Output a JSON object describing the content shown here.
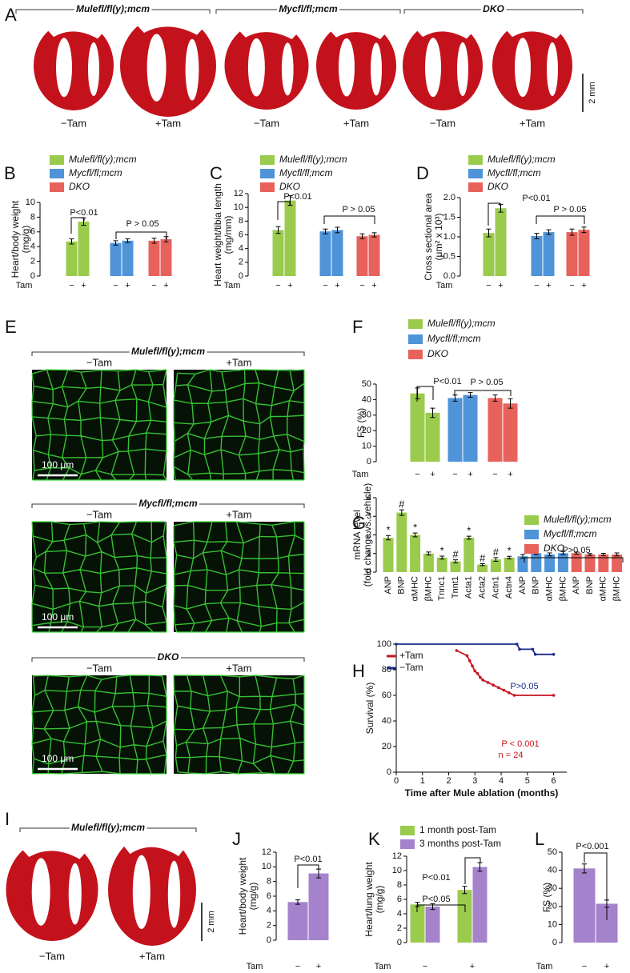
{
  "figure": {
    "A": {
      "panel": "A",
      "groups": [
        "Mulefl/fl(y);mcm",
        "Mycfl/fl;mcm",
        "DKO"
      ],
      "conditions": [
        "−Tam",
        "+Tam"
      ],
      "scale": "2 mm"
    },
    "E": {
      "panel": "E",
      "groups": [
        "Mulefl/fl(y);mcm",
        "Mycfl/fl;mcm",
        "DKO"
      ],
      "conditions": [
        "−Tam",
        "+Tam"
      ],
      "scale": "100 μm"
    },
    "I": {
      "panel": "I",
      "groups": [
        "Mulefl/fl(y);mcm"
      ],
      "conditions": [
        "−Tam",
        "+Tam"
      ],
      "scale": "2 mm"
    }
  },
  "chart_data": [
    {
      "type": "bar",
      "panel": "B",
      "x_label": "Tam",
      "y_label": [
        "Heart/body weight",
        "(mg/g)"
      ],
      "categories": [
        "−",
        "+"
      ],
      "series": [
        {
          "name": "Mulefl/fl(y);mcm",
          "color": "#9bcb4d",
          "values": [
            4.7,
            7.4
          ],
          "errors": [
            0.35,
            0.5
          ]
        },
        {
          "name": "Mycfl/fl;mcm",
          "color": "#4f94d8",
          "values": [
            4.5,
            4.8
          ],
          "errors": [
            0.3,
            0.25
          ]
        },
        {
          "name": "DKO",
          "color": "#e8625c",
          "values": [
            4.8,
            5.0
          ],
          "errors": [
            0.35,
            0.35
          ]
        }
      ],
      "ylim": [
        0,
        10
      ],
      "yticks": [
        0,
        2,
        4,
        6,
        8,
        10
      ],
      "annotations": [
        {
          "text": "P<0.01"
        },
        {
          "text": "P > 0.05"
        }
      ]
    },
    {
      "type": "bar",
      "panel": "C",
      "x_label": "Tam",
      "y_label": [
        "Heart weight/tibia length",
        "(mg/mm)"
      ],
      "categories": [
        "−",
        "+"
      ],
      "series": [
        {
          "name": "Mulefl/fl(y);mcm",
          "color": "#9bcb4d",
          "values": [
            6.7,
            11.0
          ],
          "errors": [
            0.5,
            0.7
          ]
        },
        {
          "name": "Mycfl/fl;mcm",
          "color": "#4f94d8",
          "values": [
            6.5,
            6.7
          ],
          "errors": [
            0.35,
            0.4
          ]
        },
        {
          "name": "DKO",
          "color": "#e8625c",
          "values": [
            5.8,
            6.0
          ],
          "errors": [
            0.35,
            0.3
          ]
        }
      ],
      "ylim": [
        0,
        12
      ],
      "yticks": [
        0,
        2,
        4,
        6,
        8,
        10,
        12
      ],
      "annotations": [
        {
          "text": "P<0.01"
        },
        {
          "text": "P > 0.05"
        }
      ]
    },
    {
      "type": "bar",
      "panel": "D",
      "x_label": "Tam",
      "y_label": [
        "Cross sectional area",
        "(μm² x 10³)"
      ],
      "categories": [
        "−",
        "+"
      ],
      "series": [
        {
          "name": "Mulefl/fl(y);mcm",
          "color": "#9bcb4d",
          "values": [
            1.1,
            1.73
          ],
          "errors": [
            0.1,
            0.1
          ]
        },
        {
          "name": "Mycfl/fl;mcm",
          "color": "#4f94d8",
          "values": [
            1.02,
            1.12
          ],
          "errors": [
            0.07,
            0.06
          ]
        },
        {
          "name": "DKO",
          "color": "#e8625c",
          "values": [
            1.12,
            1.18
          ],
          "errors": [
            0.08,
            0.07
          ]
        }
      ],
      "ylim": [
        0,
        2
      ],
      "yticks": [
        {
          "value": 0,
          "label": "0.0"
        },
        0.5,
        {
          "value": 1,
          "label": "1.0"
        },
        1.5,
        {
          "value": 2,
          "label": "2.0"
        }
      ],
      "annotations": [
        {
          "text": "P<0.01"
        },
        {
          "text": "P > 0.05"
        }
      ]
    },
    {
      "type": "bar",
      "panel": "F",
      "x_label": "Tam",
      "y_label": [
        "FS (%)"
      ],
      "categories": [
        "−",
        "+"
      ],
      "series": [
        {
          "name": "Mulefl/fl(y);mcm",
          "color": "#9bcb4d",
          "values": [
            44,
            31.5
          ],
          "errors": [
            3.5,
            3
          ]
        },
        {
          "name": "Mycfl/fl;mcm",
          "color": "#4f94d8",
          "values": [
            41,
            43
          ],
          "errors": [
            2,
            1.5
          ]
        },
        {
          "name": "DKO",
          "color": "#e8625c",
          "values": [
            41,
            37.5
          ],
          "errors": [
            2,
            3
          ]
        }
      ],
      "ylim": [
        0,
        50
      ],
      "yticks": [
        0,
        10,
        20,
        30,
        40,
        50
      ],
      "annotations": [
        {
          "text": "P<0.01"
        },
        {
          "text": "P > 0.05"
        }
      ]
    },
    {
      "type": "bar",
      "panel": "G",
      "y_label": [
        "mRNA level",
        "(fold change vs. vehicle)"
      ],
      "series": [
        {
          "name": "Mulefl/fl(y);mcm",
          "color": "#9bcb4d",
          "categories": [
            "ANP",
            "BNP",
            "αMHC",
            "βMHC",
            "Tnnc1",
            "Tnnt1",
            "Acta1",
            "Acta2",
            "Actn1",
            "Actn4"
          ],
          "values": [
            1.85,
            3.2,
            2.0,
            1.0,
            0.78,
            0.58,
            1.85,
            0.4,
            0.68,
            0.78
          ],
          "errors": [
            0.12,
            0.15,
            0.1,
            0.08,
            0.08,
            0.08,
            0.08,
            0.05,
            0.1,
            0.07
          ],
          "markers": [
            "*",
            "#",
            "*",
            null,
            "*",
            "#",
            "*",
            "#",
            "#",
            "*"
          ]
        },
        {
          "name": "Mycfl/fl;mcm",
          "color": "#4f94d8",
          "categories": [
            "ANP",
            "BNP",
            "αMHC",
            "βMHC"
          ],
          "values": [
            0.85,
            1.02,
            0.95,
            1.02
          ],
          "errors": [
            0.1,
            0.08,
            0.08,
            0.08
          ]
        },
        {
          "name": "DKO",
          "color": "#e8625c",
          "categories": [
            "ANP",
            "BNP",
            "αMHC",
            "βMHC"
          ],
          "values": [
            1.02,
            0.95,
            0.95,
            0.95
          ],
          "errors": [
            0.06,
            0.05,
            0.06,
            0.08
          ]
        }
      ],
      "ylim": [
        0,
        4
      ],
      "yticks": [
        0,
        1,
        2,
        3,
        4
      ],
      "annotations": [
        {
          "text": "P>0.05"
        }
      ]
    },
    {
      "type": "line",
      "panel": "H",
      "x_label": "Time after Mule ablation (months)",
      "y_label": [
        "Survival (%)"
      ],
      "series": [
        {
          "name": "+Tam",
          "color": "#c8141e",
          "x": [
            2.3,
            2.7,
            2.8,
            2.9,
            3.0,
            3.1,
            3.2,
            3.3,
            3.5,
            3.7,
            3.9,
            4.1,
            4.3,
            4.5,
            6
          ],
          "values": [
            95,
            91,
            87,
            83,
            79,
            77,
            74,
            72,
            70,
            68,
            66,
            64,
            62,
            60,
            60
          ]
        },
        {
          "name": "−Tam",
          "color": "#1a2a8c",
          "x": [
            0,
            4.6,
            4.7,
            5.2,
            5.3,
            6
          ],
          "values": [
            100,
            100,
            96,
            96,
            92,
            92
          ]
        }
      ],
      "xlim": [
        0,
        6.5
      ],
      "xticks": [
        0,
        1,
        2,
        3,
        4,
        5,
        6
      ],
      "ylim": [
        0,
        100
      ],
      "yticks": [
        0,
        20,
        40,
        60,
        80,
        100
      ],
      "annotations": [
        {
          "text": "P>0.05",
          "color": "#1a2a8c"
        },
        {
          "text": "P < 0.001",
          "color": "#c8141e"
        },
        {
          "text": "n = 24",
          "color": "#c8141e"
        }
      ]
    },
    {
      "type": "bar",
      "panel": "J",
      "x_label": "Tam",
      "y_label": [
        "Heart/body weight",
        "(mg/g)"
      ],
      "categories": [
        "−",
        "+"
      ],
      "series": [
        {
          "color": "#a583cc",
          "values": [
            5.2,
            9.1
          ],
          "errors": [
            0.3,
            0.6
          ]
        }
      ],
      "ylim": [
        0,
        12
      ],
      "yticks": [
        0,
        2,
        4,
        6,
        8,
        10,
        12
      ],
      "annotations": [
        {
          "text": "P<0.01"
        }
      ]
    },
    {
      "type": "bar",
      "panel": "K",
      "x_label": "Tam",
      "y_label": [
        "Heart/lung weight",
        "(mg/g)"
      ],
      "categories": [
        "−",
        "+"
      ],
      "series": [
        {
          "name": "1 month post-Tam",
          "color": "#9bcb4d",
          "values": [
            5.3,
            7.3
          ],
          "errors": [
            0.3,
            0.5
          ]
        },
        {
          "name": "3 months post-Tam",
          "color": "#a583cc",
          "values": [
            5.0,
            10.5
          ],
          "errors": [
            0.4,
            0.6
          ]
        }
      ],
      "ylim": [
        0,
        12
      ],
      "yticks": [
        0,
        2,
        4,
        6,
        8,
        10,
        12
      ],
      "annotations": [
        {
          "text": "P<0.05"
        },
        {
          "text": "P<0.01"
        }
      ]
    },
    {
      "type": "bar",
      "panel": "L",
      "x_label": "Tam",
      "y_label": [
        "FS (%)"
      ],
      "categories": [
        "−",
        "+"
      ],
      "series": [
        {
          "color": "#a583cc",
          "values": [
            41,
            21.5
          ],
          "errors": [
            2.5,
            2
          ]
        }
      ],
      "ylim": [
        0,
        50
      ],
      "yticks": [
        0,
        10,
        20,
        30,
        40,
        50
      ],
      "annotations": [
        {
          "text": "P<0.001"
        }
      ]
    }
  ]
}
